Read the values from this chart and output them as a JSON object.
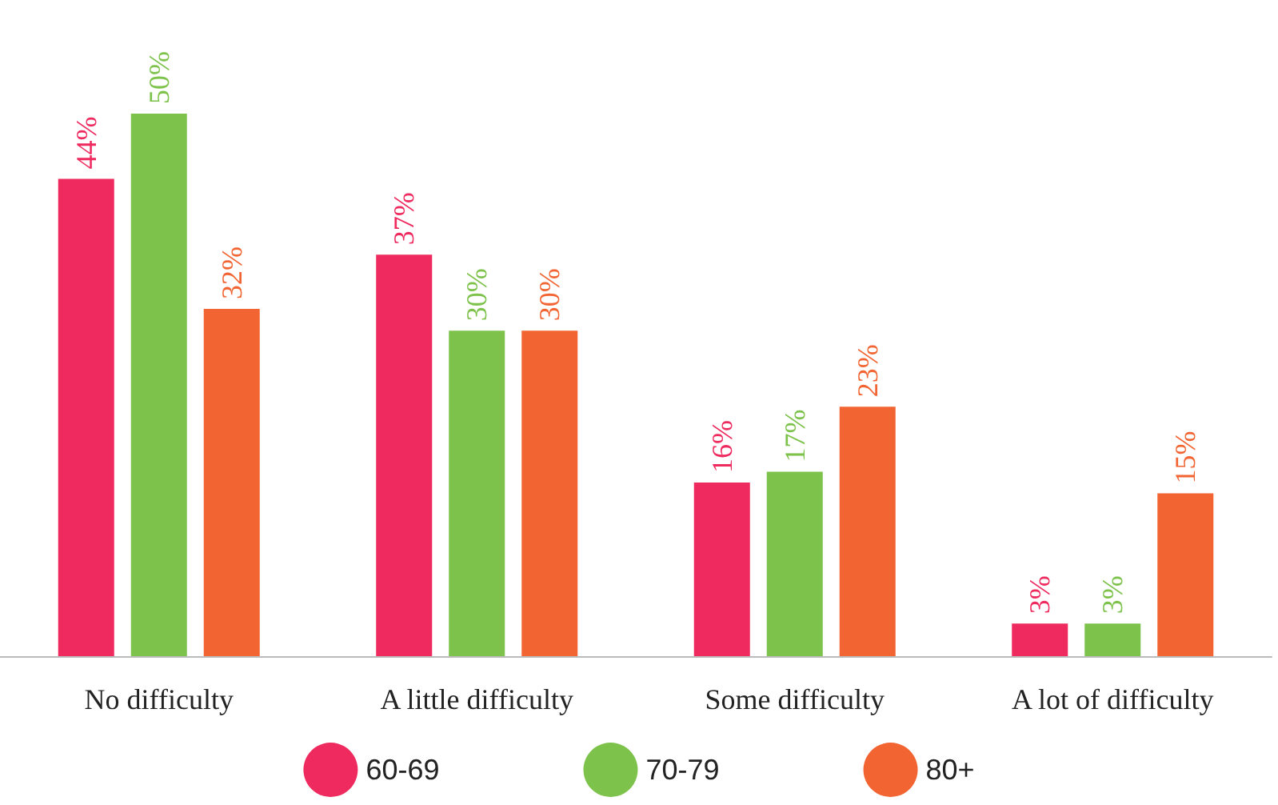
{
  "chart_data": {
    "type": "bar",
    "categories": [
      "No difficulty",
      "A little difficulty",
      "Some difficulty",
      "A lot of difficulty"
    ],
    "series": [
      {
        "name": "60-69",
        "color": "#ee2a5e",
        "values": [
          44,
          37,
          16,
          3
        ],
        "value_labels": [
          "44%",
          "37%",
          "16%",
          "3%"
        ]
      },
      {
        "name": "70-79",
        "color": "#7dc24b",
        "values": [
          50,
          30,
          17,
          3
        ],
        "value_labels": [
          "50%",
          "30%",
          "17%",
          "3%"
        ]
      },
      {
        "name": "80+",
        "color": "#f26532",
        "values": [
          32,
          30,
          23,
          15
        ],
        "value_labels": [
          "32%",
          "30%",
          "23%",
          "15%"
        ]
      }
    ],
    "grid": false,
    "legend": "bottom"
  }
}
